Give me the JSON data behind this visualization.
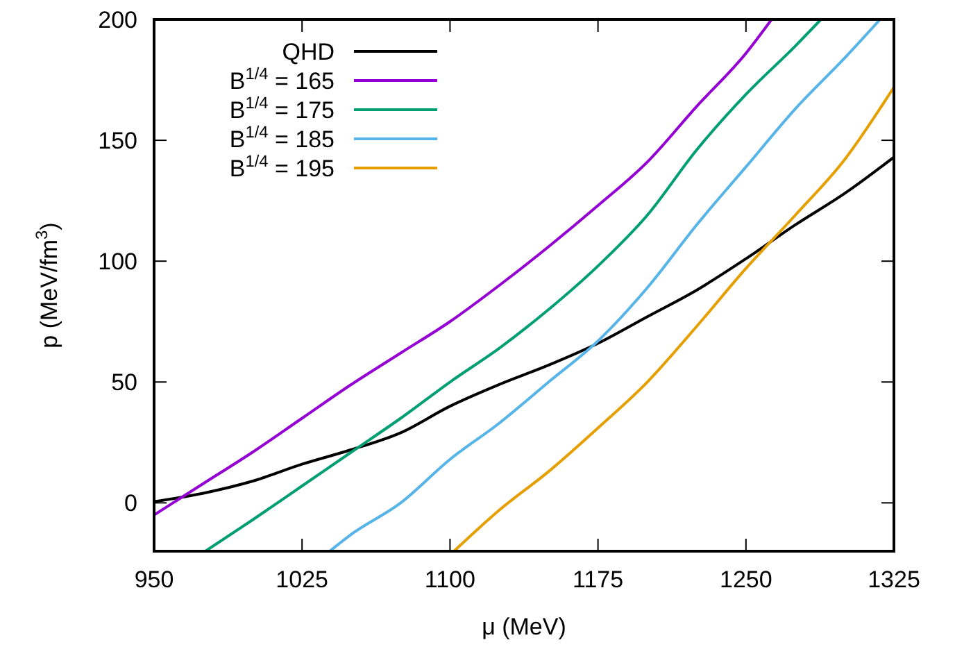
{
  "chart_data": {
    "type": "line",
    "xlabel": "μ  (MeV)",
    "ylabel": "p  (MeV/fm$^{3}$)",
    "xlim": [
      950,
      1325
    ],
    "xticks": [
      950,
      1025,
      1100,
      1175,
      1250,
      1325
    ],
    "ylim": [
      -20,
      200
    ],
    "yticks": [
      0,
      50,
      100,
      150,
      200
    ],
    "legend": "top left",
    "grid": false,
    "marker": "none",
    "line_style": "solid",
    "series": [
      {
        "name": "QHD",
        "color": "#000000",
        "x": [
          950,
          975,
          1000,
          1025,
          1050,
          1075,
          1100,
          1125,
          1150,
          1175,
          1200,
          1225,
          1250,
          1275,
          1300,
          1325
        ],
        "values": [
          0.5,
          4,
          9,
          16,
          22,
          29,
          40,
          49,
          57,
          66,
          77,
          88,
          101,
          115,
          128,
          143
        ]
      },
      {
        "name": "B$^{1/4}$ = 165",
        "color": "#9400d3",
        "x": [
          950,
          975,
          1000,
          1025,
          1050,
          1075,
          1100,
          1125,
          1150,
          1175,
          1200,
          1225,
          1250,
          1263
        ],
        "values": [
          -5,
          8,
          21,
          35,
          49,
          62,
          75,
          90,
          106,
          123,
          141,
          164,
          186,
          200
        ]
      },
      {
        "name": "B$^{1/4}$ = 175",
        "color": "#009e73",
        "x": [
          976,
          1000,
          1025,
          1050,
          1075,
          1100,
          1125,
          1150,
          1175,
          1200,
          1225,
          1250,
          1275,
          1288
        ],
        "values": [
          -20,
          -7,
          7,
          21,
          35,
          50,
          64,
          80,
          98,
          119,
          146,
          169,
          189,
          200
        ]
      },
      {
        "name": "B$^{1/4}$ = 185",
        "color": "#56b4e9",
        "x": [
          1039,
          1050,
          1075,
          1100,
          1125,
          1150,
          1175,
          1200,
          1225,
          1250,
          1275,
          1300,
          1318
        ],
        "values": [
          -20,
          -13,
          0,
          18,
          33,
          50,
          67,
          89,
          115,
          139,
          163,
          184,
          200
        ]
      },
      {
        "name": "B$^{1/4}$ = 195",
        "color": "#e69f00",
        "x": [
          1102,
          1125,
          1150,
          1175,
          1200,
          1225,
          1250,
          1275,
          1300,
          1325
        ],
        "values": [
          -20,
          -3,
          13,
          31,
          50,
          73,
          97,
          119,
          142,
          172
        ]
      }
    ]
  }
}
